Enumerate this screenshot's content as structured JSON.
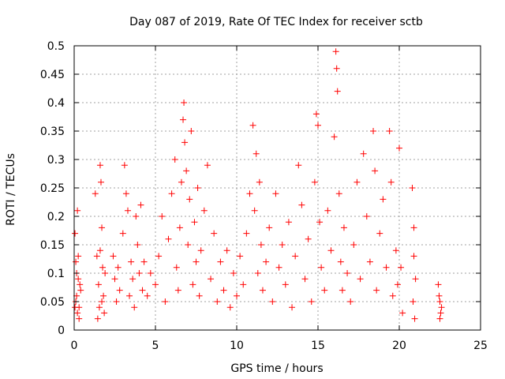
{
  "chart_data": {
    "type": "scatter",
    "title": "Day 087 of 2019, Rate Of TEC Index for receiver sctb",
    "xlabel": "GPS time / hours",
    "ylabel": "ROTI / TECUs",
    "xlim": [
      0,
      25
    ],
    "ylim": [
      0,
      0.5
    ],
    "x_ticks": [
      0,
      5,
      10,
      15,
      20,
      25
    ],
    "x_tick_labels": [
      "0",
      "5",
      "10",
      "15",
      "20",
      "25"
    ],
    "y_ticks": [
      0,
      0.05,
      0.1,
      0.15,
      0.2,
      0.25,
      0.3,
      0.35,
      0.4,
      0.45,
      0.5
    ],
    "y_tick_labels": [
      "0",
      "0.05",
      "0.1",
      "0.15",
      "0.2",
      "0.25",
      "0.3",
      "0.35",
      "0.4",
      "0.45",
      "0.5"
    ],
    "grid": true,
    "marker": "+",
    "marker_color": "#ff0000",
    "series": [
      {
        "name": "ROTI",
        "points": [
          [
            0.05,
            0.17
          ],
          [
            0.1,
            0.05
          ],
          [
            0.15,
            0.1
          ],
          [
            0.2,
            0.21
          ],
          [
            0.25,
            0.13
          ],
          [
            0.3,
            0.04
          ],
          [
            0.15,
            0.06
          ],
          [
            0.35,
            0.08
          ],
          [
            0.2,
            0.03
          ],
          [
            0.1,
            0.12
          ],
          [
            0.3,
            0.02
          ],
          [
            0.4,
            0.07
          ],
          [
            0.25,
            0.09
          ],
          [
            0.05,
            0.04
          ],
          [
            1.3,
            0.24
          ],
          [
            1.4,
            0.13
          ],
          [
            1.5,
            0.08
          ],
          [
            1.55,
            0.04
          ],
          [
            1.6,
            0.29
          ],
          [
            1.65,
            0.26
          ],
          [
            1.7,
            0.18
          ],
          [
            1.75,
            0.11
          ],
          [
            1.8,
            0.06
          ],
          [
            1.85,
            0.03
          ],
          [
            1.9,
            0.1
          ],
          [
            1.45,
            0.02
          ],
          [
            1.7,
            0.05
          ],
          [
            1.6,
            0.14
          ],
          [
            2.4,
            0.13
          ],
          [
            2.5,
            0.09
          ],
          [
            2.6,
            0.05
          ],
          [
            2.7,
            0.11
          ],
          [
            2.8,
            0.07
          ],
          [
            3.0,
            0.17
          ],
          [
            3.1,
            0.29
          ],
          [
            3.2,
            0.24
          ],
          [
            3.3,
            0.21
          ],
          [
            3.4,
            0.06
          ],
          [
            3.5,
            0.12
          ],
          [
            3.6,
            0.09
          ],
          [
            3.7,
            0.04
          ],
          [
            3.8,
            0.2
          ],
          [
            3.9,
            0.15
          ],
          [
            4.0,
            0.1
          ],
          [
            4.1,
            0.22
          ],
          [
            4.2,
            0.07
          ],
          [
            4.3,
            0.12
          ],
          [
            4.5,
            0.06
          ],
          [
            4.7,
            0.1
          ],
          [
            5.0,
            0.08
          ],
          [
            5.2,
            0.13
          ],
          [
            5.4,
            0.2
          ],
          [
            5.6,
            0.05
          ],
          [
            5.8,
            0.16
          ],
          [
            6.0,
            0.24
          ],
          [
            6.2,
            0.3
          ],
          [
            6.3,
            0.11
          ],
          [
            6.4,
            0.07
          ],
          [
            6.5,
            0.18
          ],
          [
            6.6,
            0.26
          ],
          [
            6.7,
            0.37
          ],
          [
            6.75,
            0.4
          ],
          [
            6.8,
            0.33
          ],
          [
            6.9,
            0.28
          ],
          [
            7.0,
            0.15
          ],
          [
            7.1,
            0.23
          ],
          [
            7.2,
            0.35
          ],
          [
            7.3,
            0.08
          ],
          [
            7.4,
            0.19
          ],
          [
            7.5,
            0.12
          ],
          [
            7.6,
            0.25
          ],
          [
            7.7,
            0.06
          ],
          [
            7.8,
            0.14
          ],
          [
            8.0,
            0.21
          ],
          [
            8.2,
            0.29
          ],
          [
            8.4,
            0.09
          ],
          [
            8.6,
            0.17
          ],
          [
            8.8,
            0.05
          ],
          [
            9.0,
            0.12
          ],
          [
            9.2,
            0.07
          ],
          [
            9.4,
            0.14
          ],
          [
            9.6,
            0.04
          ],
          [
            9.8,
            0.1
          ],
          [
            10.0,
            0.06
          ],
          [
            10.2,
            0.13
          ],
          [
            10.4,
            0.08
          ],
          [
            10.6,
            0.17
          ],
          [
            10.8,
            0.24
          ],
          [
            11.0,
            0.36
          ],
          [
            11.1,
            0.21
          ],
          [
            11.2,
            0.31
          ],
          [
            11.3,
            0.1
          ],
          [
            11.4,
            0.26
          ],
          [
            11.5,
            0.15
          ],
          [
            11.6,
            0.07
          ],
          [
            11.8,
            0.12
          ],
          [
            12.0,
            0.18
          ],
          [
            12.2,
            0.05
          ],
          [
            12.4,
            0.24
          ],
          [
            12.6,
            0.11
          ],
          [
            12.8,
            0.15
          ],
          [
            13.0,
            0.08
          ],
          [
            13.2,
            0.19
          ],
          [
            13.4,
            0.04
          ],
          [
            13.6,
            0.13
          ],
          [
            13.8,
            0.29
          ],
          [
            14.0,
            0.22
          ],
          [
            14.2,
            0.09
          ],
          [
            14.4,
            0.16
          ],
          [
            14.6,
            0.05
          ],
          [
            14.8,
            0.26
          ],
          [
            14.9,
            0.38
          ],
          [
            15.0,
            0.36
          ],
          [
            15.1,
            0.19
          ],
          [
            15.2,
            0.11
          ],
          [
            15.4,
            0.07
          ],
          [
            15.6,
            0.21
          ],
          [
            15.8,
            0.14
          ],
          [
            16.0,
            0.34
          ],
          [
            16.1,
            0.49
          ],
          [
            16.15,
            0.46
          ],
          [
            16.2,
            0.42
          ],
          [
            16.3,
            0.24
          ],
          [
            16.4,
            0.12
          ],
          [
            16.5,
            0.07
          ],
          [
            16.6,
            0.18
          ],
          [
            16.8,
            0.1
          ],
          [
            17.0,
            0.05
          ],
          [
            17.2,
            0.15
          ],
          [
            17.4,
            0.26
          ],
          [
            17.6,
            0.09
          ],
          [
            17.8,
            0.31
          ],
          [
            18.0,
            0.2
          ],
          [
            18.2,
            0.12
          ],
          [
            18.4,
            0.35
          ],
          [
            18.5,
            0.28
          ],
          [
            18.6,
            0.07
          ],
          [
            18.8,
            0.17
          ],
          [
            19.0,
            0.23
          ],
          [
            19.2,
            0.11
          ],
          [
            19.4,
            0.35
          ],
          [
            19.5,
            0.26
          ],
          [
            19.6,
            0.06
          ],
          [
            19.8,
            0.14
          ],
          [
            19.9,
            0.08
          ],
          [
            20.0,
            0.32
          ],
          [
            20.1,
            0.11
          ],
          [
            20.2,
            0.03
          ],
          [
            20.8,
            0.25
          ],
          [
            20.9,
            0.18
          ],
          [
            21.0,
            0.09
          ],
          [
            20.85,
            0.05
          ],
          [
            20.95,
            0.02
          ],
          [
            20.9,
            0.13
          ],
          [
            22.4,
            0.08
          ],
          [
            22.5,
            0.05
          ],
          [
            22.55,
            0.03
          ],
          [
            22.45,
            0.06
          ],
          [
            22.5,
            0.02
          ],
          [
            22.6,
            0.04
          ]
        ]
      }
    ]
  }
}
